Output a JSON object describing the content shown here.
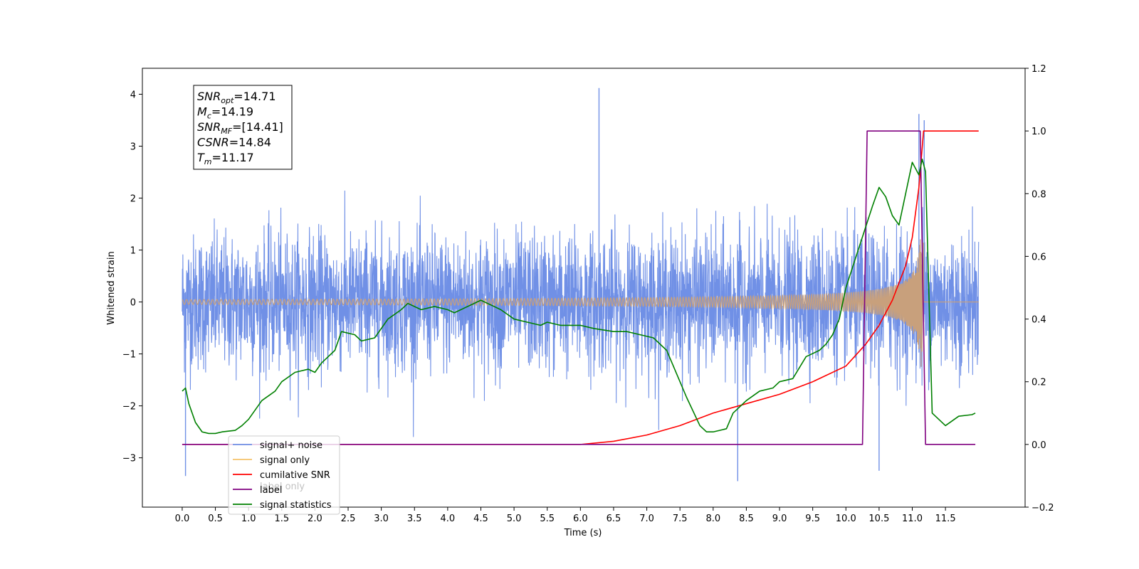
{
  "chart_data": {
    "type": "line",
    "xlabel": "Time (s)",
    "ylabel": "Whitened strain",
    "xlim": [
      -0.6,
      12.7
    ],
    "ylim_left": [
      -3.95,
      4.5
    ],
    "ylim_right": [
      -0.2,
      1.2
    ],
    "x_ticks": [
      "0.0",
      "0.5",
      "1.0",
      "1.5",
      "2.0",
      "2.5",
      "3.0",
      "3.5",
      "4.0",
      "4.5",
      "5.0",
      "5.5",
      "6.0",
      "6.5",
      "7.0",
      "7.5",
      "8.0",
      "8.5",
      "9.0",
      "9.5",
      "10.0",
      "10.5",
      "11.0",
      "11.5"
    ],
    "y_ticks_left": [
      "4",
      "3",
      "2",
      "1",
      "0",
      "−1",
      "−2",
      "−3"
    ],
    "y_ticks_right": [
      "1.2",
      "1.0",
      "0.8",
      "0.6",
      "0.4",
      "0.2",
      "0.0",
      "−0.2"
    ],
    "annotation": {
      "lines": [
        {
          "main": "SNR",
          "sub": "opt",
          "value": "=14.71"
        },
        {
          "main": "M",
          "sub": "c",
          "value": "=14.19"
        },
        {
          "main": "SNR",
          "sub": "MF",
          "value": "=[14.41]"
        },
        {
          "main": "CSNR",
          "sub": "",
          "value": "=14.84"
        },
        {
          "main": "T",
          "sub": "m",
          "value": "=11.17"
        }
      ]
    },
    "legend": {
      "placement": "lower-left",
      "entries": [
        {
          "label": "signal+ noise",
          "color": "#7090e6"
        },
        {
          "label": "signal only",
          "color": "#f5c36a"
        },
        {
          "label": "cumilative SNR",
          "color": "#ff0000"
        },
        {
          "label": "label",
          "color": "#800080"
        },
        {
          "label": "signal statistics",
          "color": "#008000"
        }
      ],
      "hidden_label": "label only"
    },
    "series": [
      {
        "name": "signal+ noise",
        "axis": "left",
        "color": "#7090e6",
        "x_range": [
          0.0,
          12.0
        ],
        "envelope": {
          "typical_range": [
            -1.9,
            2.0
          ],
          "peaks": [
            {
              "x": 6.28,
              "y": 4.12
            },
            {
              "x": 0.05,
              "y": -3.35
            },
            {
              "x": 8.37,
              "y": -3.45
            },
            {
              "x": 10.5,
              "y": -3.25
            },
            {
              "x": 11.1,
              "y": 3.62
            },
            {
              "x": 11.18,
              "y": 3.5
            }
          ]
        }
      },
      {
        "name": "signal only",
        "axis": "left",
        "color": "#f5c36a",
        "x_range": [
          0.0,
          12.0
        ],
        "chirp_end": 11.17,
        "amplitude_at_end": 1.25
      },
      {
        "name": "cumilative SNR",
        "axis": "right",
        "color": "#ff0000",
        "x": [
          0.0,
          6.0,
          6.5,
          7.0,
          7.5,
          8.0,
          8.5,
          9.0,
          9.5,
          10.0,
          10.3,
          10.5,
          10.7,
          10.9,
          11.0,
          11.1,
          11.17,
          11.5,
          12.0
        ],
        "y": [
          0.0,
          0.0,
          0.01,
          0.03,
          0.06,
          0.1,
          0.13,
          0.16,
          0.2,
          0.25,
          0.32,
          0.38,
          0.46,
          0.57,
          0.66,
          0.82,
          1.0,
          1.0,
          1.0
        ]
      },
      {
        "name": "label",
        "axis": "right",
        "color": "#800080",
        "x": [
          0.0,
          10.25,
          10.32,
          11.12,
          11.2,
          11.95
        ],
        "y": [
          0.0,
          0.0,
          1.0,
          1.0,
          0.0,
          0.0
        ]
      },
      {
        "name": "signal statistics",
        "axis": "right",
        "color": "#008000",
        "x": [
          0.0,
          0.05,
          0.1,
          0.2,
          0.3,
          0.4,
          0.5,
          0.6,
          0.8,
          0.9,
          1.0,
          1.2,
          1.4,
          1.5,
          1.7,
          1.9,
          2.0,
          2.1,
          2.3,
          2.4,
          2.6,
          2.7,
          2.9,
          3.0,
          3.1,
          3.3,
          3.4,
          3.6,
          3.8,
          4.0,
          4.1,
          4.3,
          4.5,
          4.7,
          4.8,
          5.0,
          5.2,
          5.4,
          5.5,
          5.7,
          6.0,
          6.2,
          6.5,
          6.7,
          6.9,
          7.1,
          7.3,
          7.5,
          7.6,
          7.8,
          7.9,
          8.0,
          8.2,
          8.3,
          8.5,
          8.7,
          8.9,
          9.0,
          9.2,
          9.4,
          9.5,
          9.6,
          9.7,
          9.8,
          9.9,
          10.0,
          10.2,
          10.4,
          10.5,
          10.6,
          10.7,
          10.8,
          10.9,
          11.0,
          11.1,
          11.15,
          11.2,
          11.3,
          11.5,
          11.7,
          11.9,
          11.95
        ],
        "y": [
          0.17,
          0.18,
          0.13,
          0.07,
          0.04,
          0.035,
          0.035,
          0.04,
          0.045,
          0.06,
          0.08,
          0.14,
          0.17,
          0.2,
          0.23,
          0.24,
          0.23,
          0.26,
          0.3,
          0.36,
          0.35,
          0.33,
          0.34,
          0.37,
          0.4,
          0.43,
          0.45,
          0.43,
          0.44,
          0.43,
          0.42,
          0.44,
          0.46,
          0.44,
          0.43,
          0.4,
          0.39,
          0.38,
          0.39,
          0.38,
          0.38,
          0.37,
          0.36,
          0.36,
          0.35,
          0.34,
          0.3,
          0.2,
          0.15,
          0.06,
          0.04,
          0.04,
          0.05,
          0.1,
          0.14,
          0.17,
          0.18,
          0.2,
          0.21,
          0.28,
          0.29,
          0.3,
          0.32,
          0.35,
          0.4,
          0.5,
          0.63,
          0.76,
          0.82,
          0.79,
          0.73,
          0.7,
          0.8,
          0.9,
          0.86,
          0.91,
          0.87,
          0.1,
          0.06,
          0.09,
          0.095,
          0.1
        ]
      }
    ]
  }
}
